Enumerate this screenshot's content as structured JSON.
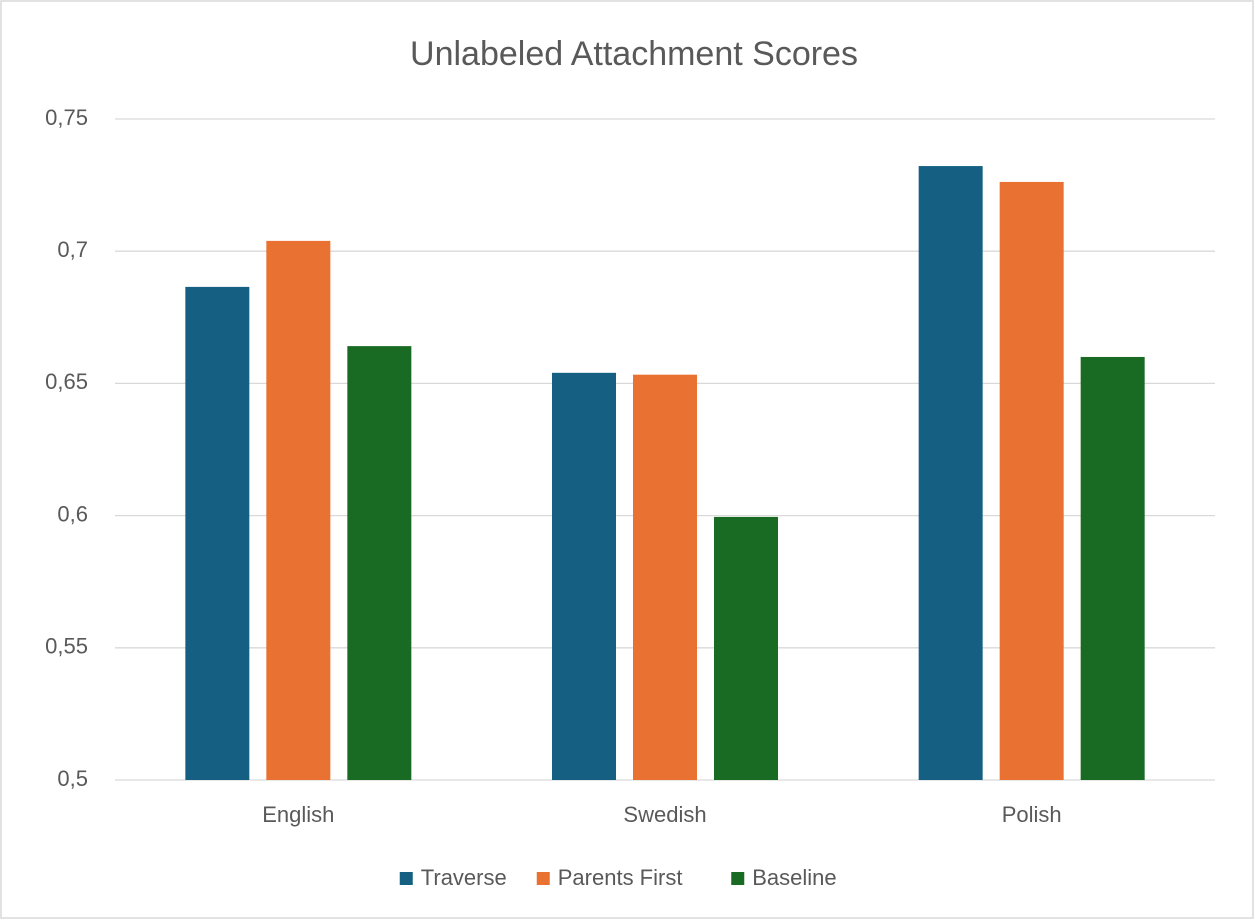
{
  "chart_data": {
    "type": "bar",
    "title": "Unlabeled Attachment Scores",
    "categories": [
      "English",
      "Swedish",
      "Polish"
    ],
    "series": [
      {
        "name": "Traverse",
        "color": "#156082",
        "values": [
          0.6865,
          0.654,
          0.7322
        ]
      },
      {
        "name": "Parents First",
        "color": "#E97132",
        "values": [
          0.7039,
          0.6533,
          0.7262
        ]
      },
      {
        "name": "Baseline",
        "color": "#196B24",
        "values": [
          0.6641,
          0.5995,
          0.66
        ]
      }
    ],
    "ylim": [
      0.5,
      0.75
    ],
    "yticks": [
      {
        "value": 0.5,
        "label": "0,5"
      },
      {
        "value": 0.55,
        "label": "0,55"
      },
      {
        "value": 0.6,
        "label": "0,6"
      },
      {
        "value": 0.65,
        "label": "0,65"
      },
      {
        "value": 0.7,
        "label": "0,7"
      },
      {
        "value": 0.75,
        "label": "0,75"
      }
    ],
    "grid": true,
    "legend": "bottom"
  }
}
